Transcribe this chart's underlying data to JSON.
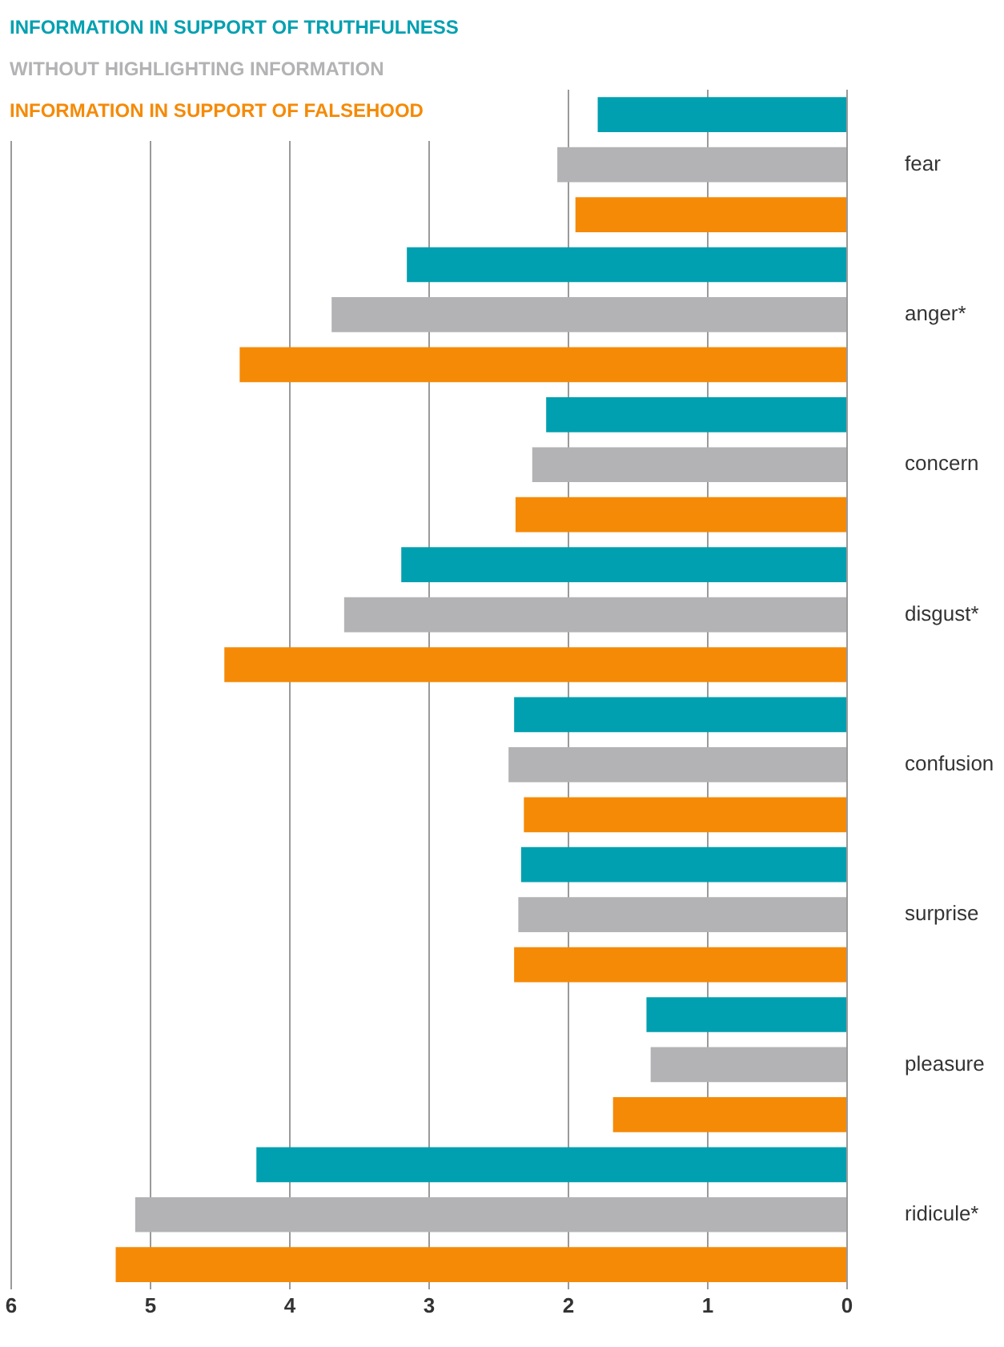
{
  "chart_data": {
    "type": "bar",
    "orientation": "horizontal",
    "categories": [
      "fear",
      "anger*",
      "concern",
      "disgust*",
      "confusion",
      "surprise",
      "pleasure",
      "ridicule*"
    ],
    "series": [
      {
        "name": "INFORMATION IN SUPPORT OF TRUTHFULNESS",
        "color": "#00a0b0",
        "values": [
          1.79,
          3.16,
          2.16,
          3.2,
          2.39,
          2.34,
          1.44,
          4.24
        ]
      },
      {
        "name": "WITHOUT HIGHLIGHTING INFORMATION",
        "color": "#b3b3b5",
        "values": [
          2.08,
          3.7,
          2.26,
          3.61,
          2.43,
          2.36,
          1.41,
          5.11
        ]
      },
      {
        "name": "INFORMATION IN SUPPORT OF FALSEHOOD",
        "color": "#f58a07",
        "values": [
          1.95,
          4.36,
          2.38,
          4.47,
          2.32,
          2.39,
          1.68,
          5.25
        ]
      }
    ],
    "xlim": [
      6,
      0
    ],
    "xticks": [
      6,
      5,
      4,
      3,
      2,
      1,
      0
    ],
    "grid": "x",
    "legend": "top left"
  }
}
